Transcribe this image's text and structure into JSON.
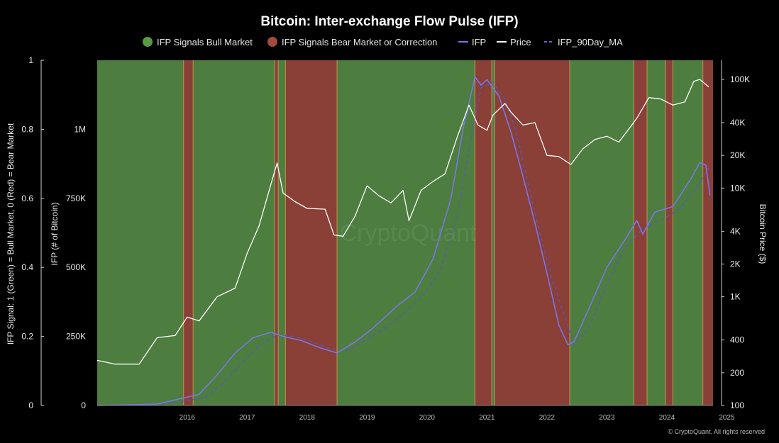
{
  "chart_data": {
    "type": "line",
    "title": "Bitcoin: Inter-exchange Flow Pulse (IFP)",
    "legend": {
      "position": "top",
      "items": [
        {
          "label": "IFP Signals Bull Market",
          "kind": "dot",
          "color": "#5a9a47"
        },
        {
          "label": "IFP Signals Bear Market or Correction",
          "kind": "dot",
          "color": "#a24a40"
        },
        {
          "label": "IFP",
          "kind": "line",
          "color": "#7a76ea"
        },
        {
          "label": "Price",
          "kind": "line",
          "color": "#ffffff"
        },
        {
          "label": "IFP_90Day_MA",
          "kind": "dash",
          "color": "#6a64c4"
        }
      ]
    },
    "colors": {
      "bull": "#4d7d3f",
      "bear": "#8a3f37",
      "ifp": "#7a76ea",
      "ma": "#5b56b8",
      "price": "#ffffff",
      "axis": "#cfcfcf"
    },
    "x_axis": {
      "ticks": [
        "2016",
        "2017",
        "2018",
        "2019",
        "2020",
        "2021",
        "2022",
        "2023",
        "2024",
        "2025"
      ],
      "range": [
        2015.0,
        2025.27
      ]
    },
    "y_axis_signal": {
      "label": "IFP Signal: 1 (Green) = Bull Market, 0 (Red) = Bear Market",
      "ticks": [
        "0",
        "0.2",
        "0.4",
        "0.6",
        "0.8",
        "1"
      ],
      "range": [
        0,
        1
      ]
    },
    "y_axis_ifp": {
      "label": "IFP (# of Bitcoin)",
      "ticks": [
        "0",
        "250K",
        "500K",
        "750K",
        "1M"
      ],
      "range": [
        0,
        1250000
      ]
    },
    "y_axis_price": {
      "label": "Bitcoin Price ($)",
      "scale": "log",
      "ticks": [
        "100",
        "200",
        "400",
        "1K",
        "2K",
        "4K",
        "10K",
        "20K",
        "40K",
        "100K"
      ],
      "tick_values": [
        100,
        200,
        400,
        1000,
        2000,
        4000,
        10000,
        20000,
        40000,
        100000
      ],
      "range": [
        100,
        150000
      ]
    },
    "signal_periods": [
      {
        "start": 2015.0,
        "end": 2016.44,
        "signal": 1
      },
      {
        "start": 2016.44,
        "end": 2016.6,
        "signal": 0
      },
      {
        "start": 2016.6,
        "end": 2017.96,
        "signal": 1
      },
      {
        "start": 2017.96,
        "end": 2018.02,
        "signal": 0
      },
      {
        "start": 2018.02,
        "end": 2018.14,
        "signal": 1
      },
      {
        "start": 2018.14,
        "end": 2019.0,
        "signal": 0
      },
      {
        "start": 2019.0,
        "end": 2021.3,
        "signal": 1
      },
      {
        "start": 2021.3,
        "end": 2021.58,
        "signal": 0
      },
      {
        "start": 2021.58,
        "end": 2021.63,
        "signal": 1
      },
      {
        "start": 2021.63,
        "end": 2022.88,
        "signal": 0
      },
      {
        "start": 2022.88,
        "end": 2023.95,
        "signal": 1
      },
      {
        "start": 2023.95,
        "end": 2024.17,
        "signal": 0
      },
      {
        "start": 2024.17,
        "end": 2024.48,
        "signal": 1
      },
      {
        "start": 2024.48,
        "end": 2024.6,
        "signal": 0
      },
      {
        "start": 2024.6,
        "end": 2025.1,
        "signal": 1
      },
      {
        "start": 2025.1,
        "end": 2025.27,
        "signal": 0
      }
    ],
    "series": [
      {
        "name": "IFP",
        "axis": "ifp",
        "x": [
          2015.0,
          2015.5,
          2016.0,
          2016.5,
          2016.7,
          2017.0,
          2017.3,
          2017.6,
          2017.9,
          2018.1,
          2018.4,
          2018.7,
          2019.0,
          2019.3,
          2019.6,
          2020.0,
          2020.3,
          2020.6,
          2020.9,
          2021.1,
          2021.3,
          2021.4,
          2021.5,
          2021.7,
          2021.9,
          2022.1,
          2022.3,
          2022.5,
          2022.7,
          2022.85,
          2022.95,
          2023.2,
          2023.5,
          2023.8,
          2024.0,
          2024.1,
          2024.3,
          2024.6,
          2024.9,
          2025.05,
          2025.15,
          2025.22
        ],
        "values": [
          0,
          2000,
          5000,
          30000,
          40000,
          110000,
          190000,
          245000,
          265000,
          250000,
          235000,
          210000,
          190000,
          230000,
          280000,
          360000,
          410000,
          530000,
          750000,
          1000000,
          1190000,
          1160000,
          1180000,
          1120000,
          990000,
          830000,
          660000,
          480000,
          290000,
          220000,
          230000,
          350000,
          500000,
          600000,
          670000,
          620000,
          700000,
          720000,
          820000,
          880000,
          870000,
          760000
        ]
      },
      {
        "name": "IFP_90Day_MA",
        "axis": "ifp",
        "x": [
          2015.0,
          2015.6,
          2016.2,
          2016.8,
          2017.1,
          2017.4,
          2017.7,
          2018.0,
          2018.3,
          2018.6,
          2018.9,
          2019.2,
          2019.5,
          2019.8,
          2020.1,
          2020.4,
          2020.7,
          2021.0,
          2021.2,
          2021.4,
          2021.6,
          2021.8,
          2022.0,
          2022.2,
          2022.4,
          2022.6,
          2022.8,
          2022.95,
          2023.2,
          2023.5,
          2023.8,
          2024.1,
          2024.4,
          2024.7,
          2025.0,
          2025.2
        ],
        "values": [
          0,
          1500,
          6000,
          30000,
          80000,
          150000,
          215000,
          255000,
          250000,
          230000,
          205000,
          200000,
          240000,
          280000,
          330000,
          390000,
          480000,
          680000,
          930000,
          1150000,
          1170000,
          1110000,
          980000,
          790000,
          610000,
          450000,
          320000,
          220000,
          280000,
          440000,
          570000,
          640000,
          670000,
          710000,
          790000,
          860000
        ]
      },
      {
        "name": "Price",
        "axis": "price",
        "x": [
          2015.0,
          2015.3,
          2015.7,
          2016.0,
          2016.3,
          2016.5,
          2016.7,
          2017.0,
          2017.3,
          2017.5,
          2017.7,
          2017.9,
          2018.0,
          2018.1,
          2018.3,
          2018.5,
          2018.8,
          2018.95,
          2019.1,
          2019.3,
          2019.5,
          2019.7,
          2019.9,
          2020.1,
          2020.2,
          2020.4,
          2020.6,
          2020.8,
          2021.0,
          2021.2,
          2021.35,
          2021.5,
          2021.6,
          2021.8,
          2021.9,
          2022.1,
          2022.3,
          2022.5,
          2022.7,
          2022.9,
          2023.1,
          2023.3,
          2023.5,
          2023.7,
          2023.9,
          2024.0,
          2024.2,
          2024.4,
          2024.6,
          2024.8,
          2024.95,
          2025.05,
          2025.2
        ],
        "values": [
          260,
          240,
          240,
          420,
          440,
          650,
          600,
          1000,
          1200,
          2500,
          4500,
          11000,
          17000,
          9000,
          7500,
          6500,
          6400,
          3700,
          3600,
          5500,
          10500,
          8500,
          7300,
          9500,
          5000,
          9500,
          11500,
          13500,
          29000,
          58000,
          38000,
          34000,
          47000,
          60000,
          50000,
          38000,
          40000,
          20000,
          19500,
          16500,
          23000,
          28000,
          30000,
          26500,
          37000,
          44000,
          68000,
          66000,
          58000,
          62000,
          96000,
          100000,
          85000
        ]
      }
    ]
  },
  "watermark": "CryptoQuant",
  "copyright": "© CryptoQuant. All rights reserved"
}
